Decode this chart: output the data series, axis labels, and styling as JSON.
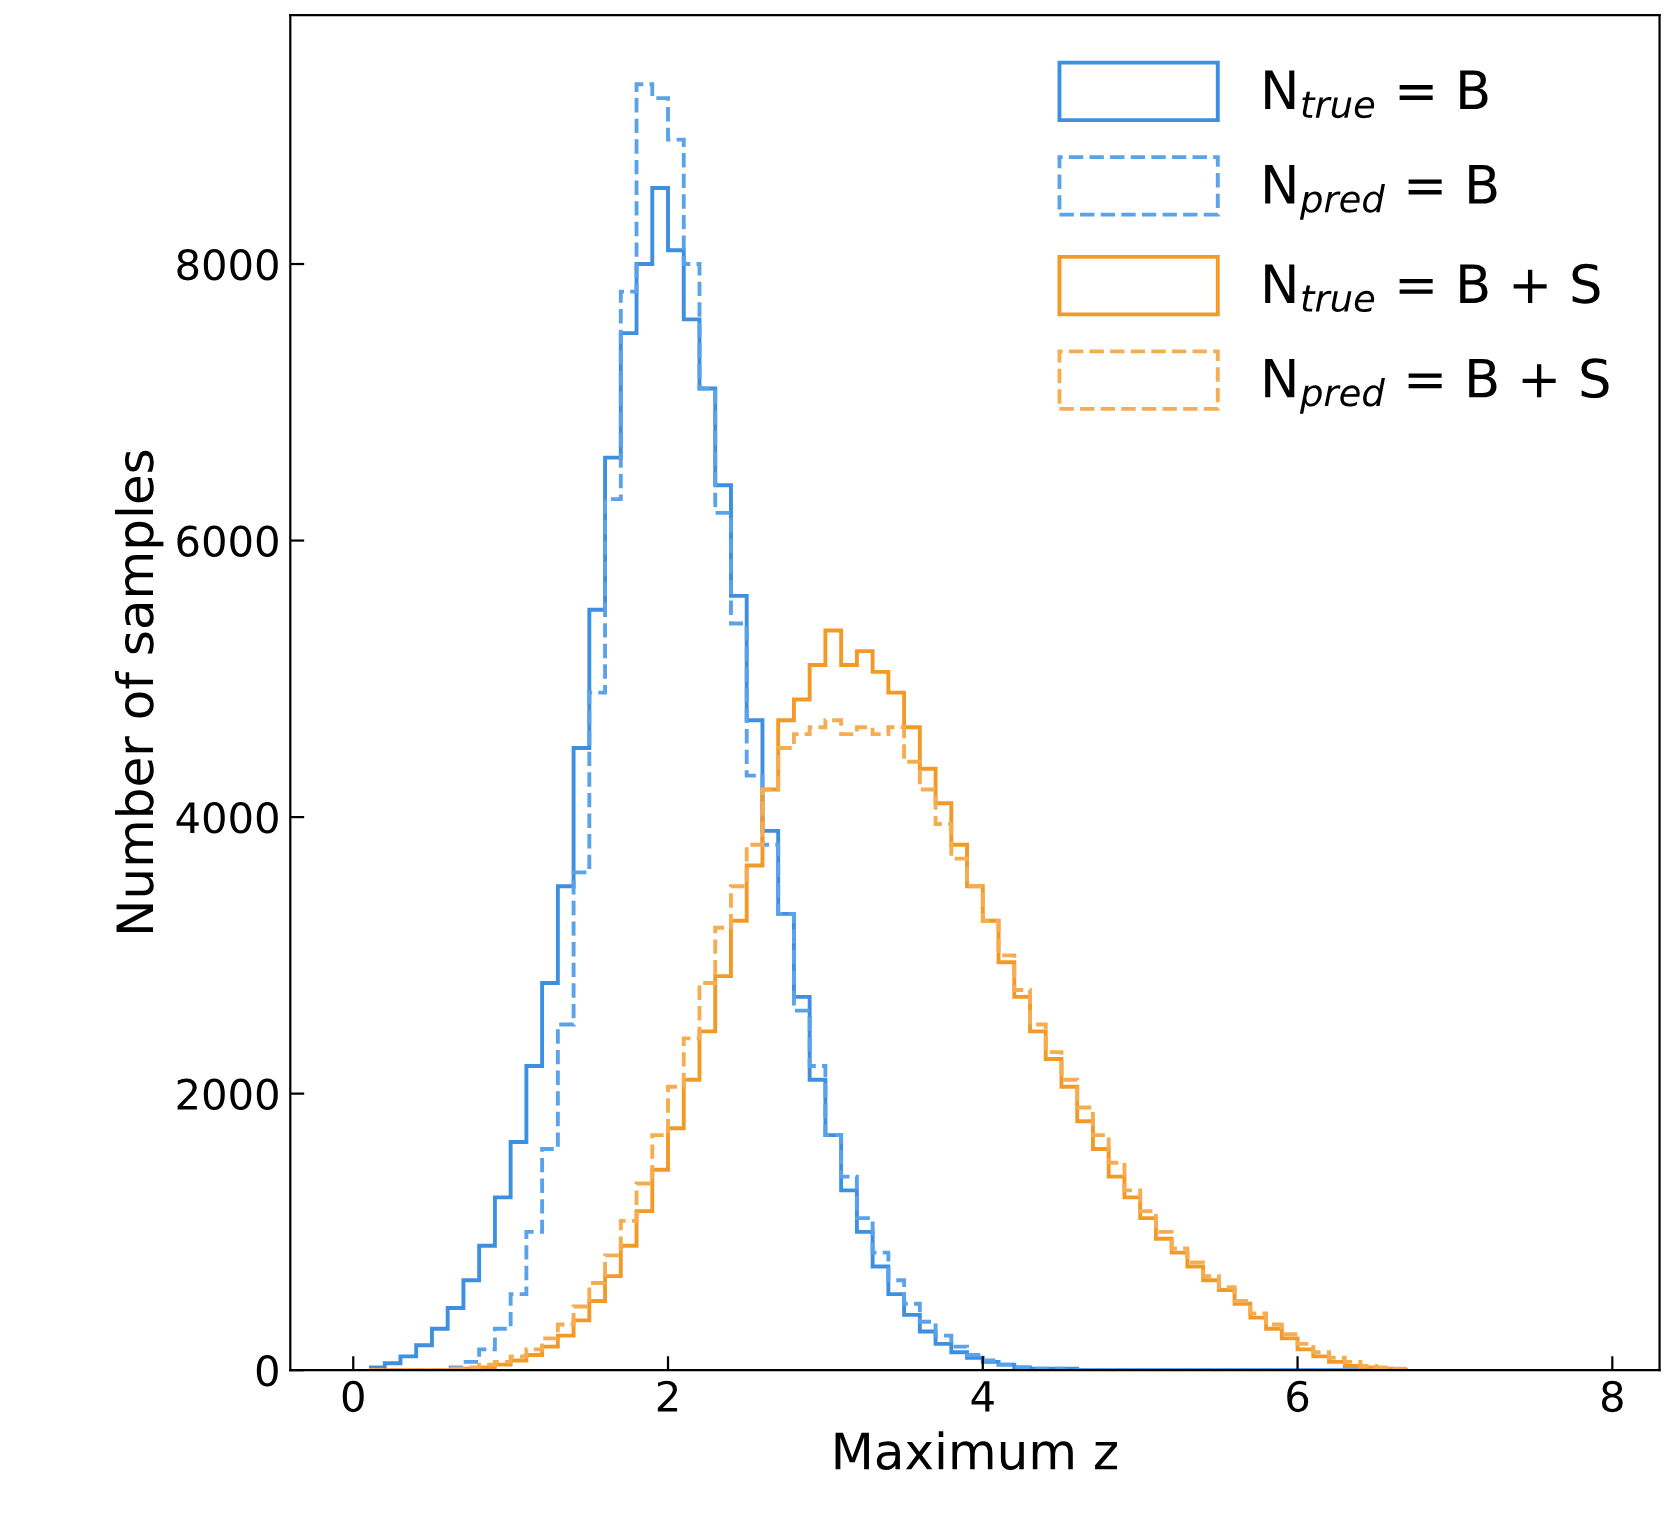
{
  "chart_data": {
    "type": "histogram",
    "xlabel": "Maximum z",
    "ylabel": "Number of samples",
    "xlim": [
      -0.4,
      8.3
    ],
    "ylim": [
      0,
      9800
    ],
    "xticks": [
      0,
      2,
      4,
      6,
      8
    ],
    "yticks": [
      0,
      2000,
      4000,
      6000,
      8000
    ],
    "grid": false,
    "legend": "top right",
    "bins": [
      0.1,
      0.2,
      0.3,
      0.4,
      0.5,
      0.6,
      0.7,
      0.8,
      0.9,
      1.0,
      1.1,
      1.2,
      1.3,
      1.4,
      1.5,
      1.6,
      1.7,
      1.8,
      1.9,
      2.0,
      2.1,
      2.2,
      2.3,
      2.4,
      2.5,
      2.6,
      2.7,
      2.8,
      2.9,
      3.0,
      3.1,
      3.2,
      3.3,
      3.4,
      3.5,
      3.6,
      3.7,
      3.8,
      3.9,
      4.0,
      4.1,
      4.2,
      4.3,
      4.4,
      4.5,
      4.6,
      4.7,
      4.8,
      4.9,
      5.0,
      5.1,
      5.2,
      5.3,
      5.4,
      5.5,
      5.6,
      5.7,
      5.8,
      5.9,
      6.0,
      6.1,
      6.2,
      6.3,
      6.4,
      6.5,
      6.6,
      6.7
    ],
    "series": [
      {
        "name": "N$_{true}$ = B",
        "color": "#3d8fe0",
        "line_style": "solid",
        "values": [
          20,
          50,
          100,
          180,
          300,
          450,
          650,
          900,
          1250,
          1650,
          2200,
          2800,
          3500,
          4500,
          5500,
          6600,
          7500,
          8000,
          8550,
          8100,
          7600,
          7100,
          6400,
          5600,
          4700,
          3900,
          3300,
          2700,
          2100,
          1700,
          1300,
          1000,
          750,
          550,
          400,
          280,
          190,
          130,
          90,
          60,
          40,
          20,
          10,
          10,
          10,
          0,
          0,
          0,
          0,
          0,
          0,
          0,
          0,
          0,
          0,
          0,
          0,
          0,
          0,
          0,
          0,
          0,
          0,
          0,
          0,
          0
        ]
      },
      {
        "name": "N$_{pred}$ = B",
        "color": "#5aa2ea",
        "line_style": "dashed",
        "values": [
          0,
          0,
          0,
          0,
          0,
          20,
          60,
          150,
          300,
          550,
          1000,
          1600,
          2500,
          3600,
          4900,
          6300,
          7800,
          9300,
          9200,
          8900,
          8000,
          7100,
          6200,
          5400,
          4300,
          3800,
          3300,
          2600,
          2200,
          1700,
          1400,
          1100,
          850,
          650,
          480,
          350,
          250,
          170,
          110,
          70,
          40,
          20,
          10,
          10,
          0,
          0,
          0,
          0,
          0,
          0,
          0,
          0,
          0,
          0,
          0,
          0,
          0,
          0,
          0,
          0,
          0,
          0,
          0,
          0,
          0,
          0
        ]
      },
      {
        "name": "N$_{true}$ = B + S",
        "color": "#f39a26",
        "line_style": "solid",
        "values": [
          0,
          0,
          0,
          0,
          0,
          0,
          10,
          20,
          40,
          70,
          110,
          170,
          250,
          360,
          500,
          680,
          900,
          1150,
          1450,
          1750,
          2100,
          2450,
          2850,
          3250,
          3650,
          4200,
          4700,
          4850,
          5100,
          5350,
          5100,
          5200,
          5050,
          4900,
          4650,
          4350,
          4100,
          3800,
          3500,
          3250,
          2950,
          2700,
          2450,
          2250,
          2050,
          1800,
          1600,
          1400,
          1250,
          1100,
          950,
          850,
          750,
          650,
          580,
          480,
          380,
          300,
          230,
          150,
          100,
          60,
          30,
          20,
          10,
          0
        ]
      },
      {
        "name": "N$_{pred}$ = B + S",
        "color": "#f6ad52",
        "line_style": "dashed",
        "values": [
          0,
          0,
          0,
          0,
          0,
          10,
          20,
          40,
          60,
          100,
          150,
          230,
          330,
          460,
          630,
          830,
          1080,
          1350,
          1700,
          2050,
          2400,
          2800,
          3200,
          3500,
          3800,
          4200,
          4500,
          4600,
          4650,
          4700,
          4600,
          4650,
          4600,
          4650,
          4400,
          4200,
          3950,
          3700,
          3500,
          3250,
          3000,
          2750,
          2500,
          2300,
          2100,
          1900,
          1700,
          1500,
          1300,
          1150,
          1000,
          880,
          780,
          680,
          600,
          500,
          410,
          330,
          260,
          190,
          130,
          90,
          60,
          30,
          20,
          10
        ]
      }
    ]
  }
}
